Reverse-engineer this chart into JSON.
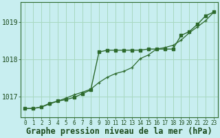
{
  "line1_y": [
    1016.68,
    1016.68,
    1016.72,
    1016.82,
    1016.88,
    1016.92,
    1016.98,
    1017.08,
    1017.18,
    1018.2,
    1018.25,
    1018.25,
    1018.25,
    1018.25,
    1018.25,
    1018.28,
    1018.28,
    1018.28,
    1018.28,
    1018.65,
    1018.75,
    1018.95,
    1019.18,
    1019.28
  ],
  "line2_y": [
    1016.68,
    1016.68,
    1016.72,
    1016.8,
    1016.88,
    1016.96,
    1017.05,
    1017.12,
    1017.2,
    1017.38,
    1017.52,
    1017.62,
    1017.68,
    1017.78,
    1018.02,
    1018.12,
    1018.28,
    1018.32,
    1018.38,
    1018.52,
    1018.72,
    1018.88,
    1019.05,
    1019.28
  ],
  "x": [
    0,
    1,
    2,
    3,
    4,
    5,
    6,
    7,
    8,
    9,
    10,
    11,
    12,
    13,
    14,
    15,
    16,
    17,
    18,
    19,
    20,
    21,
    22,
    23
  ],
  "yticks": [
    1017,
    1018,
    1019
  ],
  "ylim": [
    1016.45,
    1019.55
  ],
  "xlim": [
    -0.5,
    23.5
  ],
  "line_color": "#2d6a2d",
  "bg_color": "#c8eef0",
  "grid_color": "#a8d8c0",
  "xlabel": "Graphe pression niveau de la mer (hPa)",
  "tick_color": "#1a4a1a",
  "xlabel_fontsize": 8.5,
  "ytick_fontsize": 7,
  "xtick_fontsize": 5.5
}
